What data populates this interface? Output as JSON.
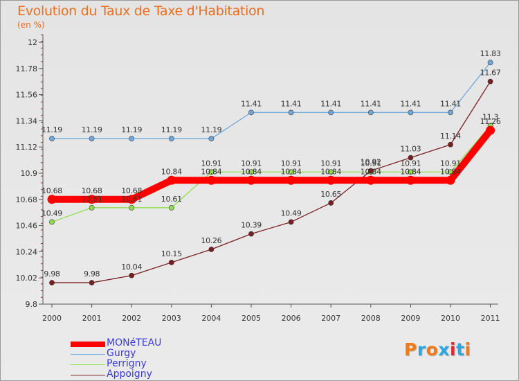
{
  "chart_data": {
    "type": "line",
    "title": "Evolution du Taux de Taxe d'Habitation",
    "subtitle": "(en %)",
    "x": [
      "2000",
      "2001",
      "2002",
      "2003",
      "2004",
      "2005",
      "2006",
      "2007",
      "2008",
      "2009",
      "2010",
      "2011"
    ],
    "y_ticks": [
      "9.8",
      "10.02",
      "10.24",
      "10.46",
      "10.68",
      "10.9",
      "11.12",
      "11.34",
      "11.56",
      "11.78",
      "12"
    ],
    "ylim": [
      9.8,
      12
    ],
    "grid": false,
    "legend_position": "bottom-left",
    "series": [
      {
        "name": "MONéTEAU",
        "color": "#ff0000",
        "values": [
          10.68,
          10.68,
          10.68,
          10.84,
          10.84,
          10.84,
          10.84,
          10.84,
          10.84,
          10.84,
          10.84,
          11.26
        ],
        "labels": [
          "10.68",
          "10.68",
          "10.68",
          "10.84",
          "10.84",
          "10.84",
          "10.84",
          "10.84",
          "10.84",
          "10.84",
          "10.84",
          "11.26"
        ]
      },
      {
        "name": "Gurgy",
        "color": "#6fa8dc",
        "values": [
          11.19,
          11.19,
          11.19,
          11.19,
          11.19,
          11.41,
          11.41,
          11.41,
          11.41,
          11.41,
          11.41,
          11.83
        ],
        "labels": [
          "11.19",
          "11.19",
          "11.19",
          "11.19",
          "11.19",
          "11.41",
          "11.41",
          "11.41",
          "11.41",
          "11.41",
          "11.41",
          "11.83"
        ]
      },
      {
        "name": "Perrigny",
        "color": "#8ee04a",
        "values": [
          10.49,
          10.61,
          10.61,
          10.61,
          10.91,
          10.91,
          10.91,
          10.91,
          10.91,
          10.91,
          10.91,
          11.3
        ],
        "labels": [
          "10.49",
          "10.61",
          "10.61",
          "10.61",
          "10.91",
          "10.91",
          "10.91",
          "10.91",
          "10.91",
          "10.91",
          "10.91",
          "11.3"
        ]
      },
      {
        "name": "Appoigny",
        "color": "#7a1f1f",
        "values": [
          9.98,
          9.98,
          10.04,
          10.15,
          10.26,
          10.39,
          10.49,
          10.65,
          10.92,
          11.03,
          11.14,
          11.67
        ],
        "labels": [
          "9.98",
          "9.98",
          "10.04",
          "10.15",
          "10.26",
          "10.39",
          "10.49",
          "10.65",
          "10.92",
          "11.03",
          "11.14",
          "11.67"
        ]
      }
    ]
  },
  "logo": {
    "text": "Proxiti",
    "colors": [
      "#f07a1a",
      "#2fa6e0",
      "#f07a1a",
      "#2fa6e0",
      "#e6242b",
      "#2fa6e0",
      "#f07a1a"
    ]
  }
}
